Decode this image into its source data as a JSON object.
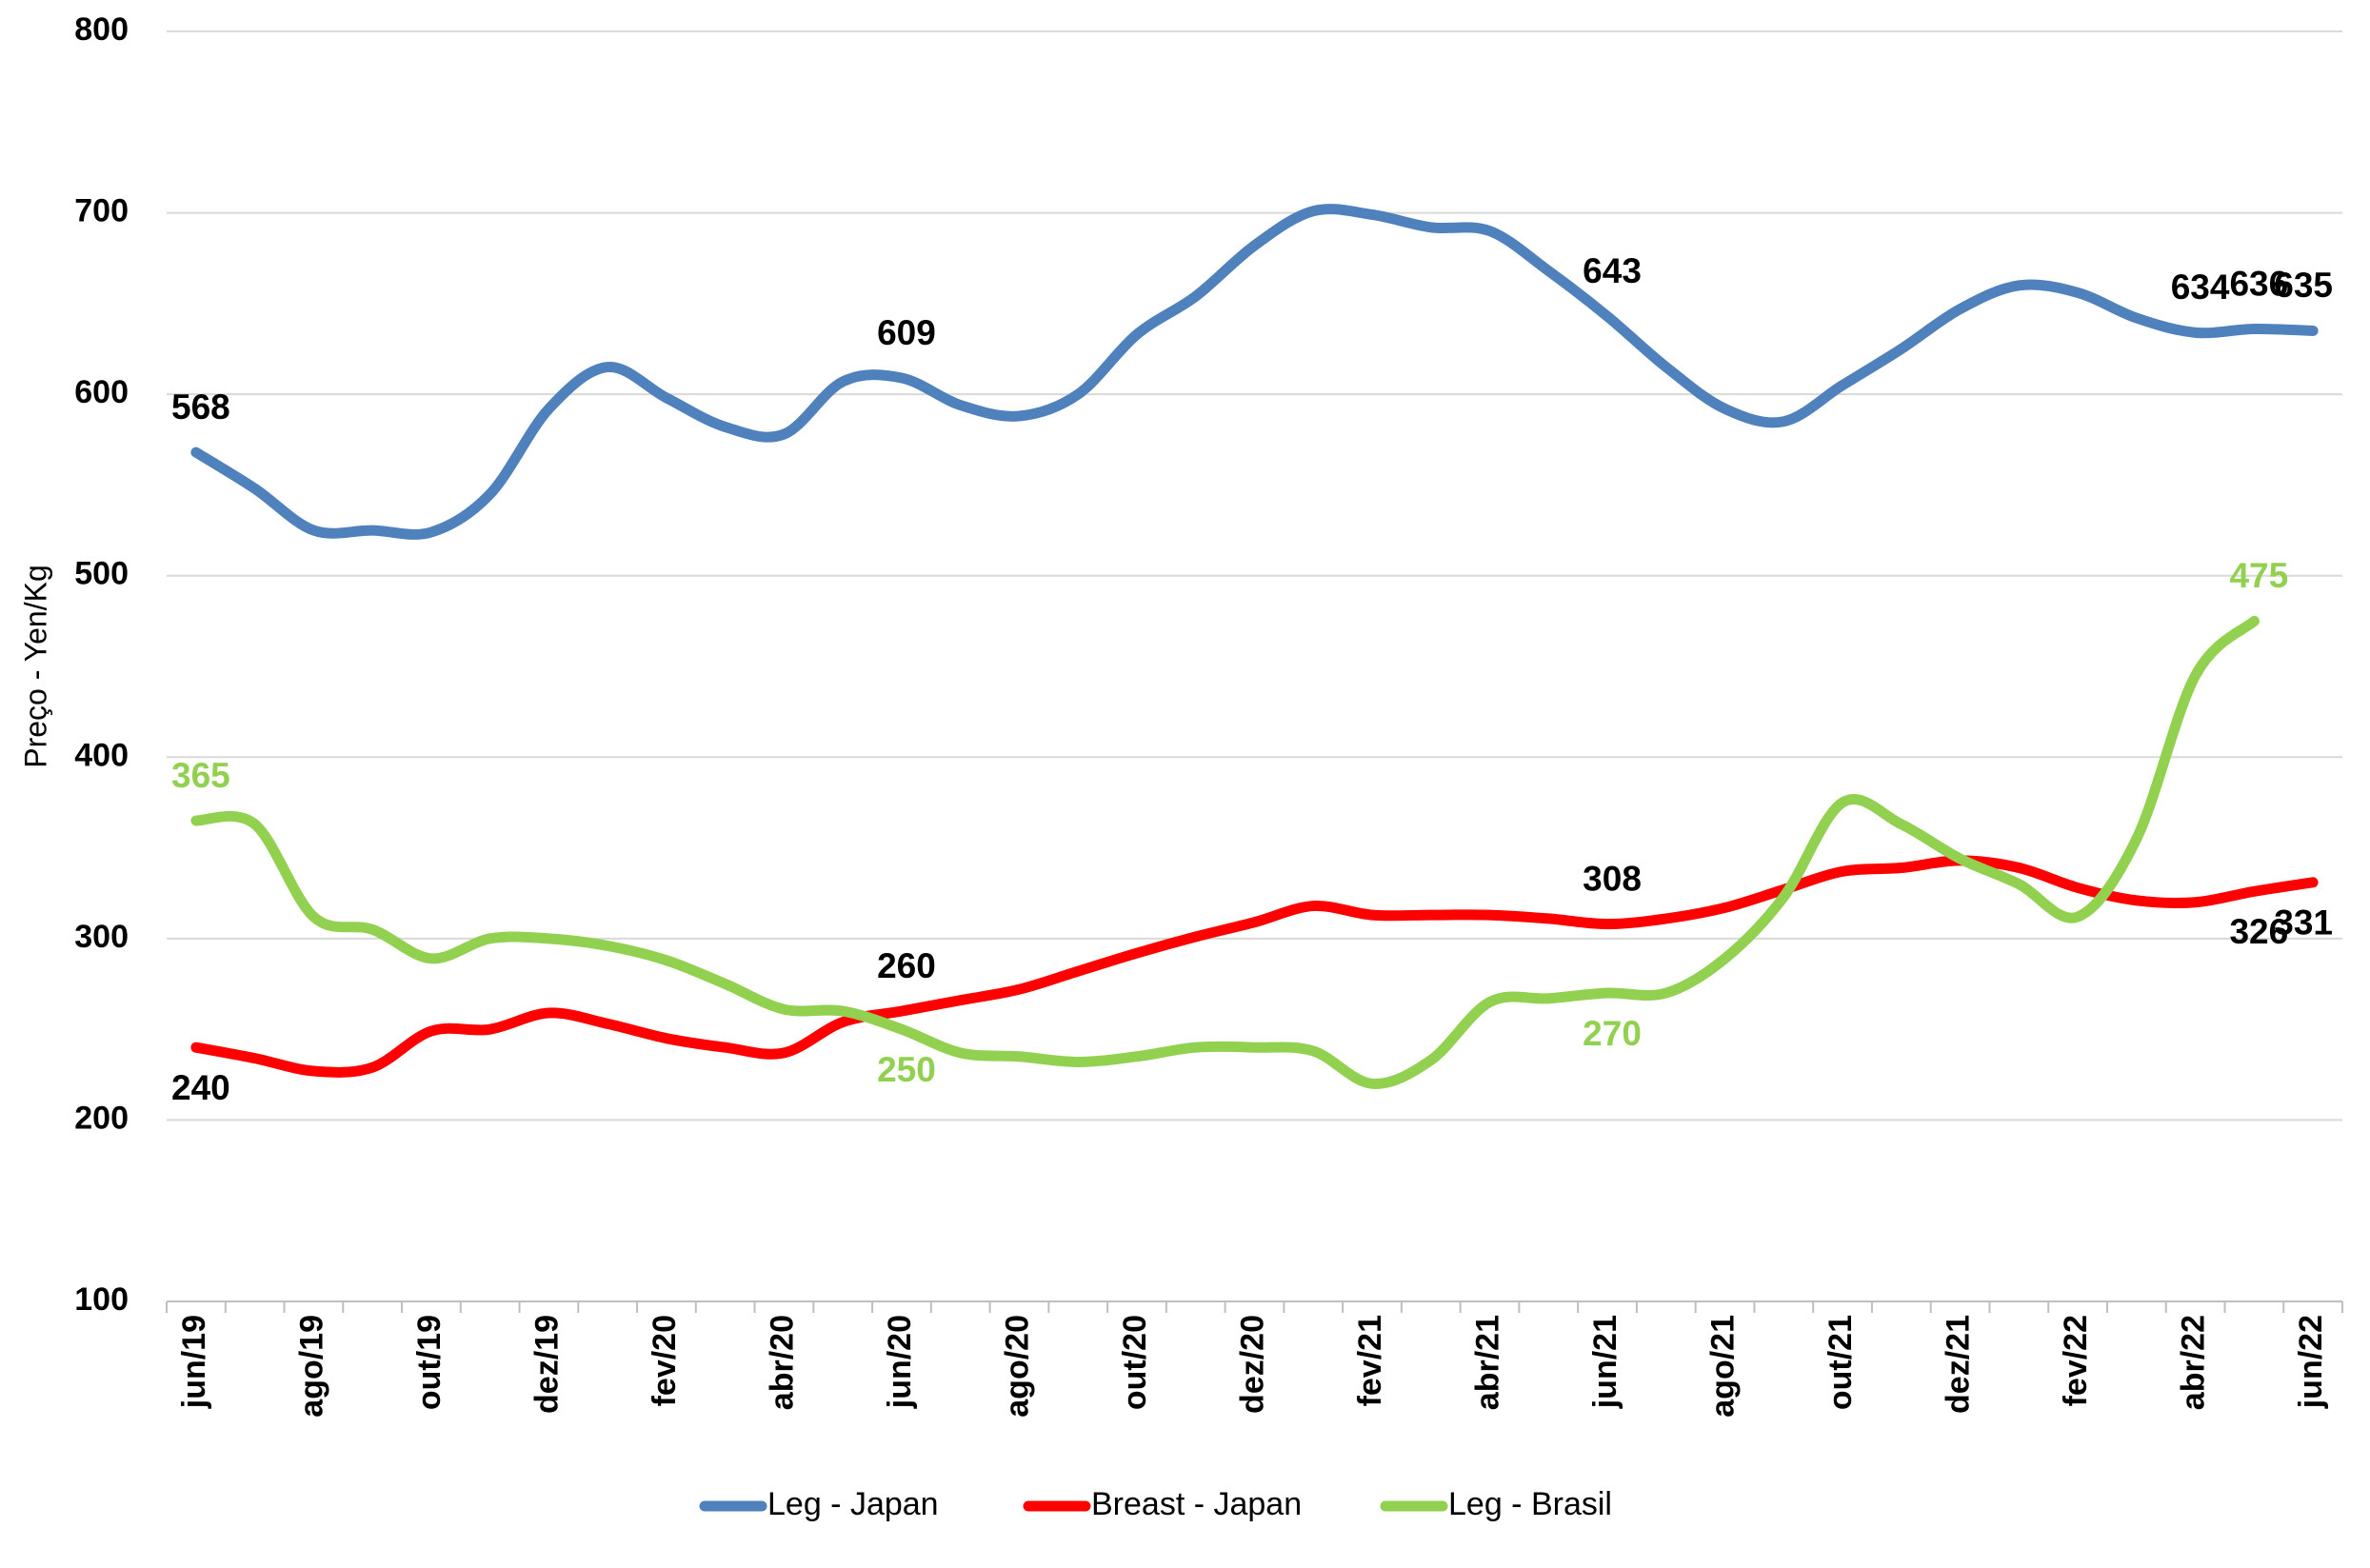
{
  "chart_data": {
    "type": "line",
    "y_label": "Preço - Yen/Kg",
    "categories": [
      "jun/19",
      null,
      "ago/19",
      null,
      "out/19",
      null,
      "dez/19",
      null,
      "fev/20",
      null,
      "abr/20",
      null,
      "jun/20",
      null,
      "ago/20",
      null,
      "out/20",
      null,
      "dez/20",
      null,
      "fev/21",
      null,
      "abr/21",
      null,
      "jun/21",
      null,
      "ago/21",
      null,
      "out/21",
      null,
      "dez/21",
      null,
      "fev/22",
      null,
      "abr/22",
      null,
      "jun/22"
    ],
    "series": [
      {
        "name": "Leg - Japan",
        "color": "#4f81bd",
        "values": [
          568,
          548,
          525,
          525,
          524,
          545,
          592,
          615,
          598,
          582,
          578,
          607,
          609,
          594,
          588,
          600,
          633,
          654,
          682,
          701,
          699,
          692,
          690,
          668,
          643,
          615,
          592,
          585,
          605,
          625,
          647,
          660,
          656,
          642,
          634,
          636,
          635
        ],
        "value_labels": [
          "568",
          null,
          null,
          null,
          null,
          null,
          null,
          null,
          null,
          null,
          null,
          null,
          "609",
          null,
          null,
          null,
          null,
          null,
          null,
          null,
          null,
          null,
          null,
          null,
          "643",
          null,
          null,
          null,
          null,
          null,
          null,
          null,
          null,
          null,
          "634",
          "636",
          "635"
        ]
      },
      {
        "name": "Breast - Japan",
        "color": "#ff0000",
        "values": [
          240,
          234,
          227,
          229,
          249,
          250,
          259,
          253,
          245,
          240,
          237,
          254,
          260,
          266,
          272,
          282,
          292,
          301,
          309,
          318,
          313,
          313,
          313,
          311,
          308,
          311,
          317,
          327,
          337,
          339,
          343,
          339,
          328,
          321,
          320,
          326,
          331
        ],
        "value_labels": [
          "240",
          null,
          null,
          null,
          null,
          null,
          null,
          null,
          null,
          null,
          null,
          null,
          "260",
          null,
          null,
          null,
          null,
          null,
          null,
          null,
          null,
          null,
          null,
          null,
          "308",
          null,
          null,
          null,
          null,
          null,
          null,
          null,
          null,
          null,
          null,
          "326",
          "331"
        ]
      },
      {
        "name": "Leg - Brasil",
        "color": "#92d050",
        "values": [
          365,
          363,
          312,
          305,
          289,
          300,
          300,
          296,
          288,
          275,
          261,
          260,
          250,
          237,
          235,
          232,
          235,
          240,
          240,
          238,
          220,
          233,
          265,
          267,
          270,
          270,
          289,
          323,
          375,
          363,
          344,
          330,
          312,
          355,
          445,
          475,
          null
        ],
        "value_labels": [
          "365",
          null,
          null,
          null,
          null,
          null,
          null,
          null,
          null,
          null,
          null,
          null,
          "250",
          null,
          null,
          null,
          null,
          null,
          null,
          null,
          null,
          null,
          null,
          null,
          "270",
          null,
          null,
          null,
          null,
          null,
          null,
          null,
          null,
          null,
          null,
          "475",
          null
        ]
      }
    ],
    "ylim": [
      100,
      800
    ],
    "yticks": [
      100,
      200,
      300,
      400,
      500,
      600,
      700,
      800
    ],
    "grid": true,
    "legend": "bottom"
  }
}
